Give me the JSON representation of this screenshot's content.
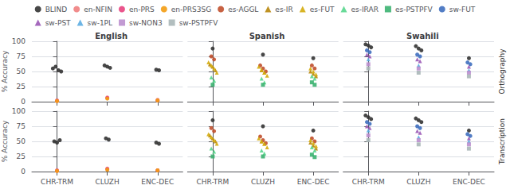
{
  "chart_data": [
    {
      "type": "scatter",
      "title": "English",
      "categories": [
        "CHR-TRM",
        "CLUZH",
        "ENC-DEC"
      ],
      "ylabel": "% Accuracy",
      "ylim": [
        0,
        100
      ],
      "yticks": [
        0,
        25,
        50,
        75,
        100
      ],
      "grid": true,
      "tick_labels": "y",
      "legend": "top",
      "series": [
        {
          "name": "BLIND",
          "color": "#333333",
          "marker": "circle",
          "values": [
            [
              55,
              58,
              52,
              50
            ],
            [
              60,
              58,
              56
            ],
            [
              53,
              52
            ]
          ]
        },
        {
          "name": "en-NFIN",
          "color": "#f08080",
          "marker": "circle",
          "values": [
            [
              1
            ],
            [
              7
            ],
            [
              3
            ]
          ]
        },
        {
          "name": "en-PRS",
          "color": "#e8437f",
          "marker": "circle",
          "values": [
            [
              2
            ],
            [
              6
            ],
            [
              2
            ]
          ]
        },
        {
          "name": "en-PRS3SG",
          "color": "#f39c12",
          "marker": "circle",
          "values": [
            [
              1
            ],
            [
              5
            ],
            [
              2
            ]
          ]
        }
      ]
    },
    {
      "type": "scatter",
      "title": "Spanish",
      "categories": [
        "CHR-TRM",
        "CLUZH",
        "ENC-DEC"
      ],
      "ylim": [
        0,
        100
      ],
      "yticks": [
        0,
        25,
        50,
        75,
        100
      ],
      "grid": true,
      "tick_labels": false,
      "series": [
        {
          "name": "BLIND",
          "color": "#333333",
          "marker": "circle",
          "values": [
            [
              88
            ],
            [
              78
            ],
            [
              72
            ]
          ]
        },
        {
          "name": "es-AGGL",
          "color": "#c1502e",
          "marker": "circle",
          "values": [
            [
              75,
              70
            ],
            [
              60,
              55,
              50
            ],
            [
              60,
              55
            ]
          ]
        },
        {
          "name": "es-IR",
          "color": "#b8860b",
          "marker": "triangle",
          "values": [
            [
              62,
              58,
              52
            ],
            [
              52,
              48
            ],
            [
              50,
              46,
              42
            ]
          ]
        },
        {
          "name": "es-FUT",
          "color": "#d4ac0d",
          "marker": "triangle",
          "values": [
            [
              65,
              60,
              55,
              48
            ],
            [
              58,
              53,
              48,
              43
            ],
            [
              55,
              50,
              45
            ]
          ]
        },
        {
          "name": "es-IRAR",
          "color": "#58d68d",
          "marker": "triangle",
          "values": [
            [
              40,
              35
            ],
            [
              38,
              32
            ],
            [
              42,
              38
            ]
          ]
        },
        {
          "name": "es-PSTPFV",
          "color": "#3cb371",
          "marker": "square",
          "values": [
            [
              28
            ],
            [
              28
            ],
            [
              32,
              28
            ]
          ]
        }
      ]
    },
    {
      "type": "scatter",
      "title": "Swahili",
      "categories": [
        "CHR-TRM",
        "CLUZH",
        "ENC-DEC"
      ],
      "ylim": [
        0,
        100
      ],
      "yticks": [
        0,
        25,
        50,
        75,
        100
      ],
      "grid": true,
      "tick_labels": false,
      "annotations": [
        "Orthography"
      ],
      "series": [
        {
          "name": "BLIND",
          "color": "#333333",
          "marker": "circle",
          "values": [
            [
              95,
              93,
              90
            ],
            [
              92,
              88,
              85
            ],
            [
              72
            ]
          ]
        },
        {
          "name": "sw-FUT",
          "color": "#3f6fbf",
          "marker": "circle",
          "values": [
            [
              85,
              82
            ],
            [
              78,
              75
            ],
            [
              65,
              62
            ]
          ]
        },
        {
          "name": "sw-PST",
          "color": "#9b59b6",
          "marker": "triangle",
          "values": [
            [
              78,
              75
            ],
            [
              70,
              67
            ],
            [
              58
            ]
          ]
        },
        {
          "name": "sw-1PL",
          "color": "#5dade2",
          "marker": "triangle",
          "values": [
            [
              70
            ],
            [
              60
            ],
            [
              52
            ]
          ]
        },
        {
          "name": "sw-NON3",
          "color": "#bb8fce",
          "marker": "square",
          "values": [
            [
              62
            ],
            [
              55
            ],
            [
              48
            ]
          ]
        },
        {
          "name": "sw-PSTPFV",
          "color": "#aab7b8",
          "marker": "square",
          "values": [
            [
              55
            ],
            [
              48
            ],
            [
              42
            ]
          ]
        }
      ]
    },
    {
      "type": "scatter",
      "categories": [
        "CHR-TRM",
        "CLUZH",
        "ENC-DEC"
      ],
      "ylabel": "% Accuracy",
      "ylim": [
        0,
        100
      ],
      "yticks": [
        0,
        25,
        50,
        75,
        100
      ],
      "grid": true,
      "series": [
        {
          "name": "BLIND",
          "color": "#333333",
          "marker": "circle",
          "values": [
            [
              50,
              48,
              52
            ],
            [
              55,
              53
            ],
            [
              48,
              46
            ]
          ]
        },
        {
          "name": "en-NFIN",
          "color": "#f08080",
          "marker": "circle",
          "values": [
            [
              1
            ],
            [
              5
            ],
            [
              2
            ]
          ]
        },
        {
          "name": "en-PRS",
          "color": "#e8437f",
          "marker": "circle",
          "values": [
            [
              2
            ],
            [
              4
            ],
            [
              2
            ]
          ]
        },
        {
          "name": "en-PRS3SG",
          "color": "#f39c12",
          "marker": "circle",
          "values": [
            [
              1
            ],
            [
              3
            ],
            [
              2
            ]
          ]
        }
      ]
    },
    {
      "type": "scatter",
      "categories": [
        "CHR-TRM",
        "CLUZH",
        "ENC-DEC"
      ],
      "ylim": [
        0,
        100
      ],
      "yticks": [
        0,
        25,
        50,
        75,
        100
      ],
      "grid": true,
      "tick_labels": "x",
      "series": [
        {
          "name": "BLIND",
          "color": "#333333",
          "marker": "circle",
          "values": [
            [
              85
            ],
            [
              75
            ],
            [
              68
            ]
          ]
        },
        {
          "name": "es-AGGL",
          "color": "#c1502e",
          "marker": "circle",
          "values": [
            [
              72,
              67
            ],
            [
              58,
              52,
              47
            ],
            [
              55,
              50
            ]
          ]
        },
        {
          "name": "es-IR",
          "color": "#b8860b",
          "marker": "triangle",
          "values": [
            [
              60,
              55,
              50
            ],
            [
              50,
              46
            ],
            [
              48,
              43,
              38
            ]
          ]
        },
        {
          "name": "es-FUT",
          "color": "#d4ac0d",
          "marker": "triangle",
          "values": [
            [
              62,
              57,
              52,
              46
            ],
            [
              55,
              50,
              46,
              40
            ],
            [
              52,
              47,
              42
            ]
          ]
        },
        {
          "name": "es-IRAR",
          "color": "#58d68d",
          "marker": "triangle",
          "values": [
            [
              38,
              33
            ],
            [
              35,
              30
            ],
            [
              40,
              35
            ]
          ]
        },
        {
          "name": "es-PSTPFV",
          "color": "#3cb371",
          "marker": "square",
          "values": [
            [
              25
            ],
            [
              25
            ],
            [
              28,
              24
            ]
          ]
        }
      ]
    },
    {
      "type": "scatter",
      "categories": [
        "CHR-TRM",
        "CLUZH",
        "ENC-DEC"
      ],
      "ylim": [
        0,
        100
      ],
      "yticks": [
        0,
        25,
        50,
        75,
        100
      ],
      "grid": true,
      "tick_labels": "x",
      "annotations": [
        "Transcription"
      ],
      "series": [
        {
          "name": "BLIND",
          "color": "#333333",
          "marker": "circle",
          "values": [
            [
              93,
              90,
              87
            ],
            [
              88,
              85,
              82
            ],
            [
              68
            ]
          ]
        },
        {
          "name": "sw-FUT",
          "color": "#3f6fbf",
          "marker": "circle",
          "values": [
            [
              82,
              79
            ],
            [
              75,
              72
            ],
            [
              62,
              59
            ]
          ]
        },
        {
          "name": "sw-PST",
          "color": "#9b59b6",
          "marker": "triangle",
          "values": [
            [
              75,
              72
            ],
            [
              67,
              64
            ],
            [
              55
            ]
          ]
        },
        {
          "name": "sw-1PL",
          "color": "#5dade2",
          "marker": "triangle",
          "values": [
            [
              68
            ],
            [
              57
            ],
            [
              50
            ]
          ]
        },
        {
          "name": "sw-NON3",
          "color": "#bb8fce",
          "marker": "square",
          "values": [
            [
              60
            ],
            [
              52
            ],
            [
              45
            ]
          ]
        },
        {
          "name": "sw-PSTPFV",
          "color": "#aab7b8",
          "marker": "square",
          "values": [
            [
              52
            ],
            [
              45
            ],
            [
              38
            ]
          ]
        }
      ]
    }
  ]
}
